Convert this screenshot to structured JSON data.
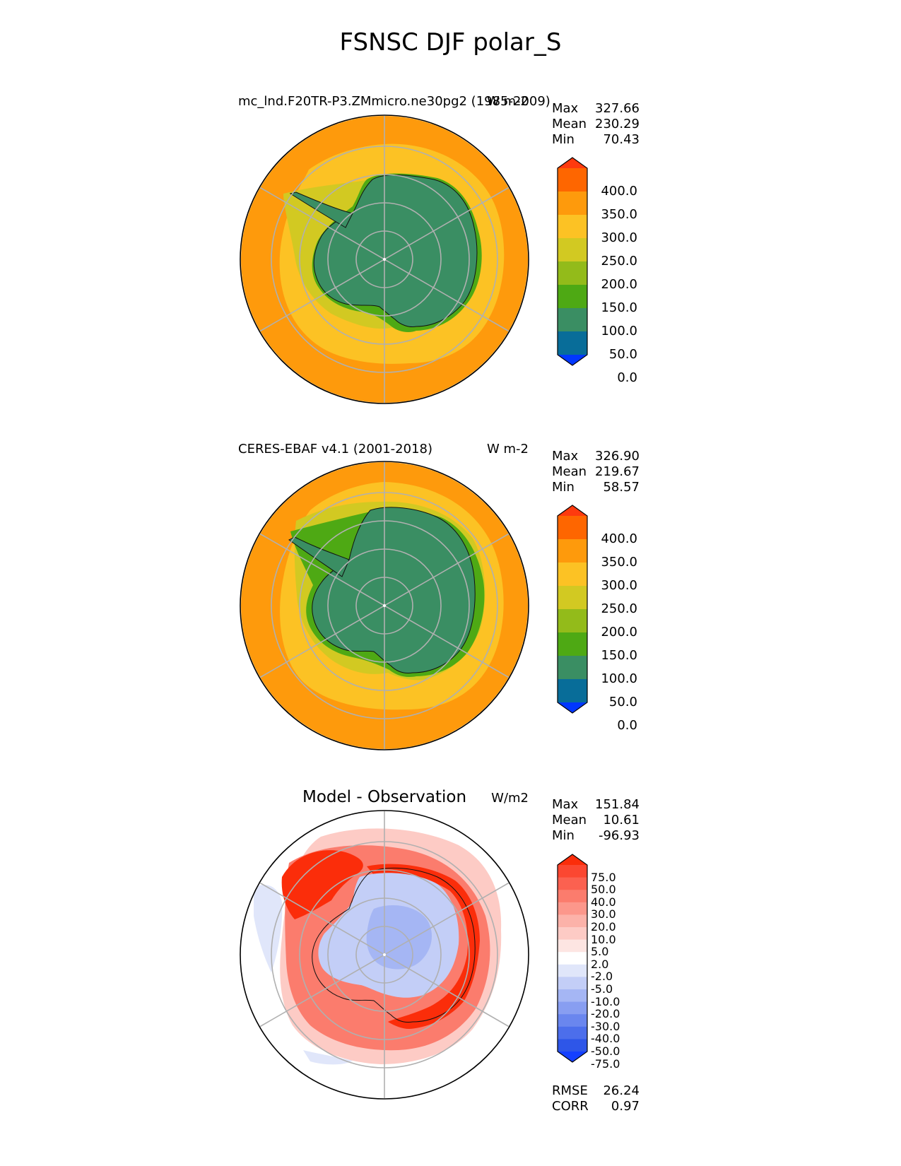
{
  "figure": {
    "title": "FSNSC DJF polar_S"
  },
  "panels": [
    {
      "left_title": "mc_lnd.F20TR-P3.ZMmicro.ne30pg2 (1985-2009)",
      "center_title": "",
      "units": "W m-2",
      "stats": {
        "max_label": "Max",
        "max": "327.66",
        "mean_label": "Mean",
        "mean": "230.29",
        "min_label": "Min",
        "min": "70.43"
      }
    },
    {
      "left_title": "CERES-EBAF v4.1 (2001-2018)",
      "center_title": "",
      "units": "W m-2",
      "stats": {
        "max_label": "Max",
        "max": "326.90",
        "mean_label": "Mean",
        "mean": "219.67",
        "min_label": "Min",
        "min": "58.57"
      }
    },
    {
      "left_title": "",
      "center_title": "Model - Observation",
      "units": "W/m2",
      "stats": {
        "max_label": "Max",
        "max": "151.84",
        "mean_label": "Mean",
        "mean": "10.61",
        "min_label": "Min",
        "min": "-96.93"
      },
      "metrics": {
        "rmse_label": "RMSE",
        "rmse": "26.24",
        "corr_label": "CORR",
        "corr": "0.97"
      }
    }
  ],
  "colorbar_main": {
    "ticks": [
      "400.0",
      "350.0",
      "300.0",
      "250.0",
      "200.0",
      "150.0",
      "100.0",
      "50.0",
      "0.0"
    ],
    "colors": [
      "#fe3a0e",
      "#fe6600",
      "#fe9a0c",
      "#fcc224",
      "#d2c922",
      "#93bb1a",
      "#4ea914",
      "#3a8e63",
      "#086d99",
      "#0137ff"
    ]
  },
  "colorbar_diff": {
    "ticks": [
      "75.0",
      "50.0",
      "40.0",
      "30.0",
      "20.0",
      "10.0",
      "5.0",
      "2.0",
      "-2.0",
      "-5.0",
      "-10.0",
      "-20.0",
      "-30.0",
      "-40.0",
      "-50.0",
      "-75.0"
    ],
    "colors": [
      "#fb2d0a",
      "#fb4731",
      "#fb6150",
      "#fb7c6d",
      "#fc978b",
      "#fcb2a9",
      "#fdcbc5",
      "#fde5e2",
      "#ffffff",
      "#e0e6fa",
      "#c3cef7",
      "#a5b6f4",
      "#889ef1",
      "#6a86ee",
      "#4c6eeb",
      "#2e56e8",
      "#1440ff"
    ]
  },
  "map_colors": {
    "ocean_outer": "#fe9a0c",
    "ocean_mid": "#fcc224",
    "ice_edge": "#d2c922",
    "coast_green": "#4ea914",
    "land": "#3a8e63",
    "graticule": "#b0b0b0",
    "diff_pos_strong": "#fb2d0a",
    "diff_pos_mid": "#fb7c6d",
    "diff_pos_weak": "#fdcbc5",
    "diff_neg_weak": "#c3cef7",
    "diff_neg_mid": "#a5b6f4"
  }
}
